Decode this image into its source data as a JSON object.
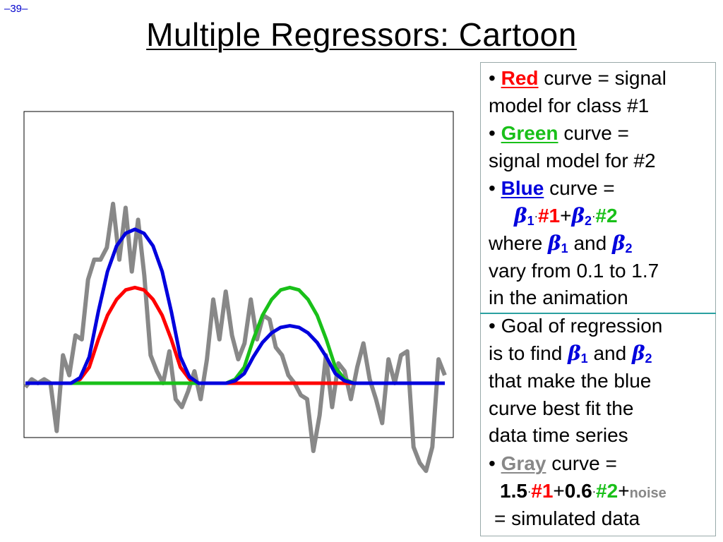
{
  "slide_number": "–39–",
  "title": "Multiple Regressors: Cartoon",
  "colors": {
    "red": "#ff0000",
    "green": "#19c019",
    "blue": "#0000dd",
    "gray": "#888888",
    "divider": "#2aa0a0"
  },
  "bullets": {
    "red": {
      "bullet": "•",
      "word": "Red",
      "rest": "curve = signal",
      "line2": "model for class #1"
    },
    "green": {
      "bullet": "•",
      "word": "Green",
      "rest": "curve =",
      "line2": "signal model for #2"
    },
    "blue": {
      "bullet": "•",
      "word": "Blue",
      "rest": "curve =",
      "formula": {
        "beta": "β",
        "sub1": "1",
        "dot": "·",
        "term1": "#1",
        "plus": "+",
        "sub2": "2",
        "term2": "#2"
      },
      "where_prefix": "where",
      "and": "and",
      "line4": "vary from 0.1 to 1.7",
      "line5": "in the animation"
    },
    "goal": {
      "bullet": "•",
      "line1": "Goal of regression",
      "line2_prefix": "is to find",
      "and": "and",
      "line3": "that make the blue",
      "line4": "curve best fit the",
      "line5": "data time series"
    },
    "gray": {
      "bullet": "•",
      "word": "Gray",
      "rest": "curve =",
      "formula": {
        "coef1": "1.5",
        "dot": "·",
        "term1": "#1",
        "plus": "+",
        "coef2": "0.6",
        "term2": "#2",
        "noise": "noise"
      },
      "line3": "= simulated data"
    }
  },
  "chart_data": {
    "type": "line",
    "series": [
      {
        "color": "#888888",
        "values": [
          -0.05,
          0.05,
          0.0,
          0.05,
          0.0,
          -0.6,
          0.35,
          0.1,
          0.6,
          0.55,
          1.3,
          1.55,
          1.55,
          1.7,
          2.25,
          1.55,
          2.2,
          1.4,
          2.05,
          1.35,
          0.35,
          0.15,
          0.0,
          0.4,
          -0.2,
          -0.3,
          -0.1,
          0.15,
          -0.2,
          0.3,
          1.05,
          0.55,
          1.15,
          0.6,
          0.3,
          0.5,
          1.05,
          0.55,
          0.85,
          0.8,
          0.45,
          0.35,
          0.1,
          0.0,
          -0.15,
          -0.2,
          -0.85,
          -0.4,
          0.35,
          -0.3,
          0.25,
          0.15,
          -0.2,
          0.2,
          0.5,
          0.05,
          -0.2,
          -0.5,
          0.3,
          0.0,
          0.35,
          0.4,
          -0.8,
          -1.0,
          -1.1,
          -0.8,
          0.3,
          0.1
        ]
      },
      {
        "color": "#ff0000",
        "values": [
          0,
          0,
          0,
          0,
          0,
          0,
          0.05,
          0.2,
          0.55,
          0.85,
          1.05,
          1.17,
          1.2,
          1.17,
          1.05,
          0.85,
          0.55,
          0.2,
          0.05,
          0,
          0,
          0,
          0,
          0,
          0,
          0,
          0,
          0,
          0,
          0,
          0,
          0,
          0,
          0,
          0,
          0,
          0,
          0,
          0,
          0,
          0,
          0,
          0,
          0,
          0,
          0,
          0
        ]
      },
      {
        "color": "#19c019",
        "values": [
          0,
          0,
          0,
          0,
          0,
          0,
          0,
          0,
          0,
          0,
          0,
          0,
          0,
          0,
          0,
          0,
          0,
          0,
          0,
          0,
          0,
          0,
          0,
          0.05,
          0.2,
          0.55,
          0.85,
          1.05,
          1.17,
          1.2,
          1.17,
          1.05,
          0.85,
          0.55,
          0.2,
          0.05,
          0,
          0,
          0,
          0,
          0,
          0,
          0,
          0,
          0,
          0,
          0
        ]
      },
      {
        "color": "#0000dd",
        "values": [
          0,
          0,
          0,
          0,
          0,
          0,
          0.07,
          0.33,
          0.9,
          1.4,
          1.72,
          1.88,
          1.93,
          1.88,
          1.72,
          1.4,
          0.9,
          0.33,
          0.08,
          0.0,
          0.0,
          0.0,
          0.0,
          0.03,
          0.12,
          0.33,
          0.51,
          0.63,
          0.7,
          0.72,
          0.7,
          0.63,
          0.51,
          0.33,
          0.12,
          0.03,
          0,
          0,
          0,
          0,
          0,
          0,
          0,
          0,
          0,
          0,
          0
        ]
      }
    ],
    "ylim": [
      -1.2,
      2.6
    ]
  }
}
